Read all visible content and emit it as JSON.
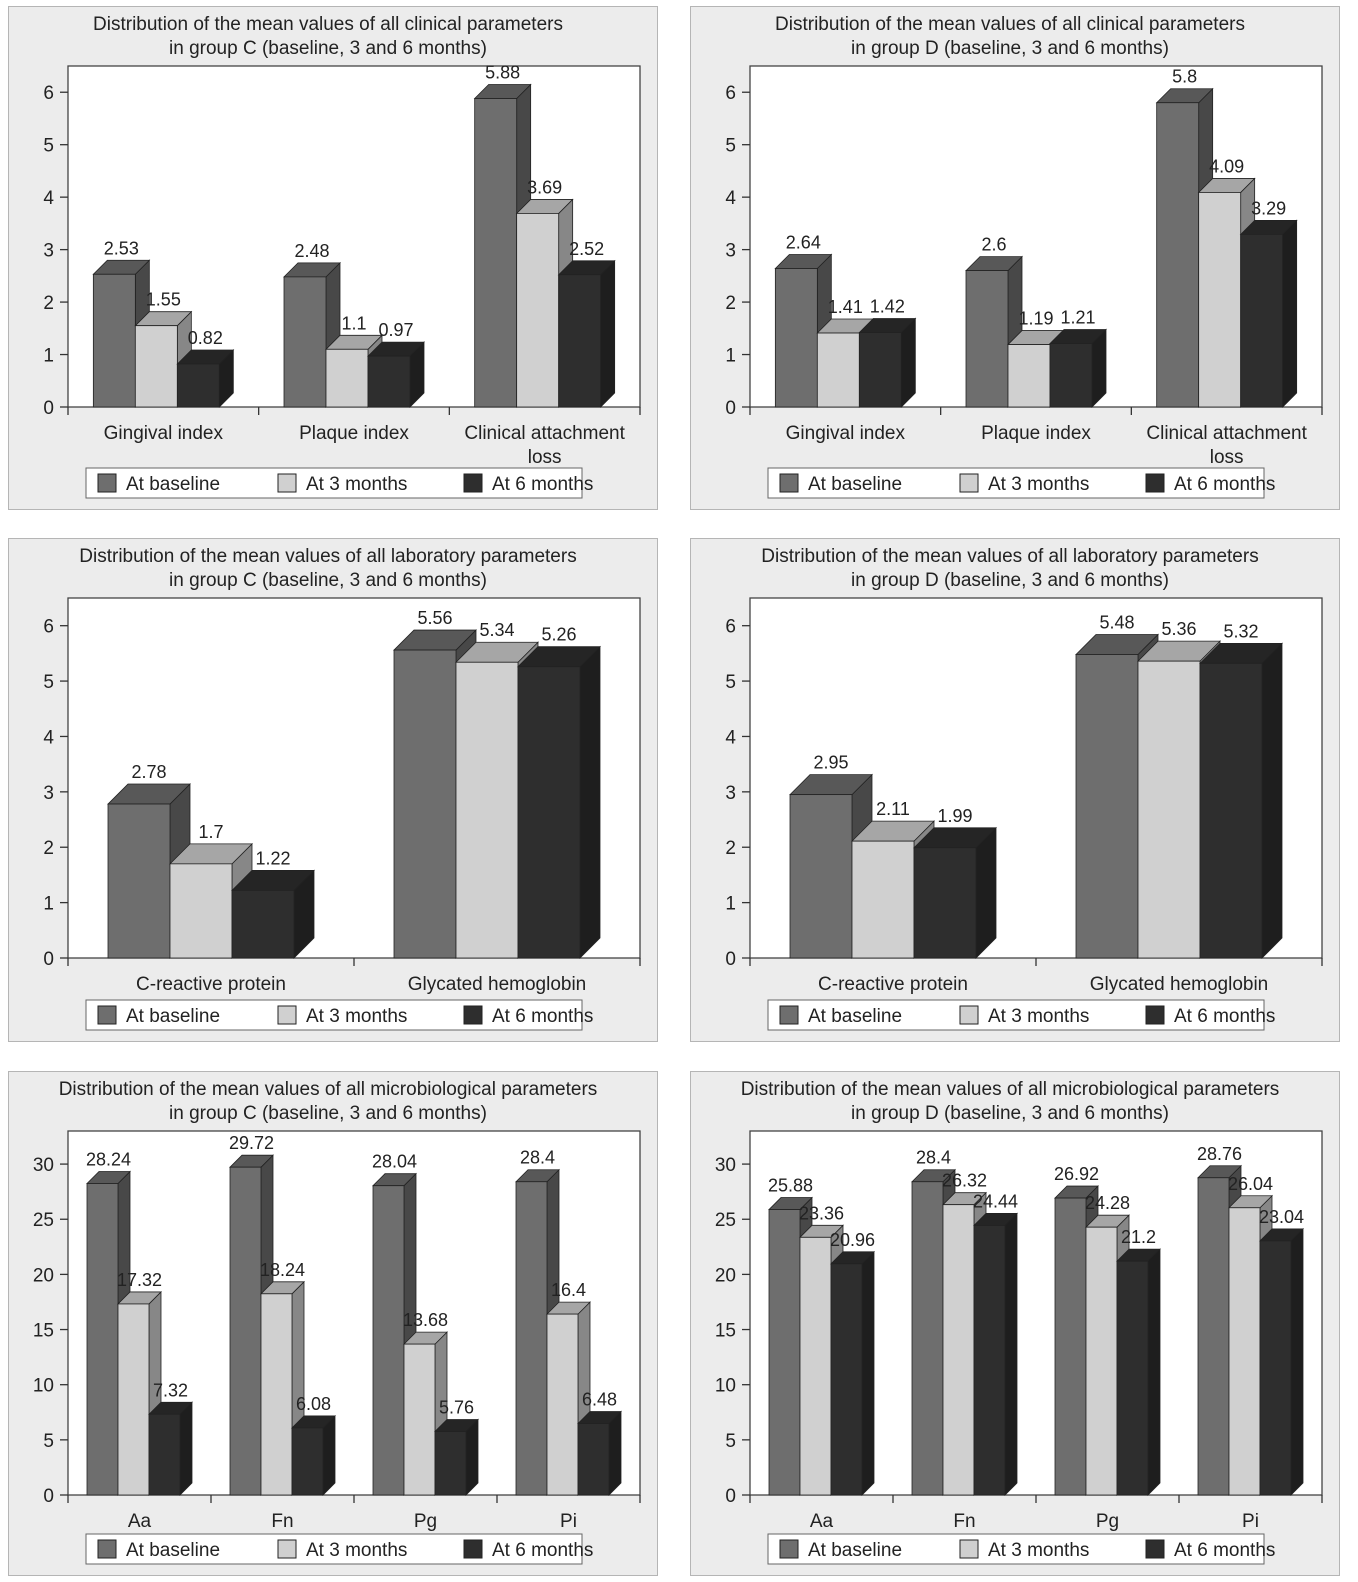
{
  "legend_labels": [
    "At baseline",
    "At 3 months",
    "At 6 months"
  ],
  "colors": {
    "baseline": "#6e6e6e",
    "month3": "#d0d0d0",
    "month6": "#2e2e2e",
    "panel_bg": "#ececec",
    "plot_bg": "#ffffff"
  },
  "chart_data": [
    {
      "id": "clinical-c",
      "type": "bar",
      "title_lines": [
        "Distribution of the mean values of all clinical parameters",
        "in group C (baseline, 3 and 6 months)"
      ],
      "categories": [
        [
          "Gingival index"
        ],
        [
          "Plaque index"
        ],
        [
          "Clinical attachment",
          "loss"
        ]
      ],
      "ylim": [
        0,
        6.5
      ],
      "yticks": [
        0,
        1,
        2,
        3,
        4,
        5,
        6
      ],
      "series": [
        {
          "name": "At baseline",
          "values": [
            2.53,
            2.48,
            5.88
          ]
        },
        {
          "name": "At 3 months",
          "values": [
            1.55,
            1.1,
            3.69
          ]
        },
        {
          "name": "At 6 months",
          "values": [
            0.82,
            0.97,
            2.52
          ]
        }
      ],
      "grid": false,
      "legend": "bottom"
    },
    {
      "id": "clinical-d",
      "type": "bar",
      "title_lines": [
        "Distribution of the mean values of all clinical parameters",
        "in group D (baseline, 3 and 6 months)"
      ],
      "categories": [
        [
          "Gingival index"
        ],
        [
          "Plaque index"
        ],
        [
          "Clinical attachment",
          "loss"
        ]
      ],
      "ylim": [
        0,
        6.5
      ],
      "yticks": [
        0,
        1,
        2,
        3,
        4,
        5,
        6
      ],
      "series": [
        {
          "name": "At baseline",
          "values": [
            2.64,
            2.6,
            5.8
          ]
        },
        {
          "name": "At 3 months",
          "values": [
            1.41,
            1.19,
            4.09
          ]
        },
        {
          "name": "At 6 months",
          "values": [
            1.42,
            1.21,
            3.29
          ]
        }
      ],
      "grid": false,
      "legend": "bottom"
    },
    {
      "id": "laboratory-c",
      "type": "bar",
      "title_lines": [
        "Distribution of the mean values of all laboratory parameters",
        "in group C (baseline, 3 and 6 months)"
      ],
      "categories": [
        [
          "C-reactive protein"
        ],
        [
          "Glycated hemoglobin"
        ]
      ],
      "ylim": [
        0,
        6.5
      ],
      "yticks": [
        0,
        1,
        2,
        3,
        4,
        5,
        6
      ],
      "series": [
        {
          "name": "At baseline",
          "values": [
            2.78,
            5.56
          ]
        },
        {
          "name": "At 3 months",
          "values": [
            1.7,
            5.34
          ]
        },
        {
          "name": "At 6 months",
          "values": [
            1.22,
            5.26
          ]
        }
      ],
      "grid": false,
      "legend": "bottom"
    },
    {
      "id": "laboratory-d",
      "type": "bar",
      "title_lines": [
        "Distribution of the mean values of all laboratory parameters",
        "in group D (baseline, 3 and 6 months)"
      ],
      "categories": [
        [
          "C-reactive protein"
        ],
        [
          "Glycated hemoglobin"
        ]
      ],
      "ylim": [
        0,
        6.5
      ],
      "yticks": [
        0,
        1,
        2,
        3,
        4,
        5,
        6
      ],
      "series": [
        {
          "name": "At baseline",
          "values": [
            2.95,
            5.48
          ]
        },
        {
          "name": "At 3 months",
          "values": [
            2.11,
            5.36
          ]
        },
        {
          "name": "At 6 months",
          "values": [
            1.99,
            5.32
          ]
        }
      ],
      "grid": false,
      "legend": "bottom"
    },
    {
      "id": "microbiological-c",
      "type": "bar",
      "title_lines": [
        "Distribution of the mean values of all microbiological parameters",
        "in group C (baseline, 3 and 6 months)"
      ],
      "categories": [
        [
          "Aa"
        ],
        [
          "Fn"
        ],
        [
          "Pg"
        ],
        [
          "Pi"
        ]
      ],
      "ylim": [
        0,
        33
      ],
      "yticks": [
        0,
        5,
        10,
        15,
        20,
        25,
        30
      ],
      "series": [
        {
          "name": "At baseline",
          "values": [
            28.24,
            29.72,
            28.04,
            28.4
          ]
        },
        {
          "name": "At 3 months",
          "values": [
            17.32,
            18.24,
            13.68,
            16.4
          ]
        },
        {
          "name": "At 6 months",
          "values": [
            7.32,
            6.08,
            5.76,
            6.48
          ]
        }
      ],
      "grid": false,
      "legend": "bottom"
    },
    {
      "id": "microbiological-d",
      "type": "bar",
      "title_lines": [
        "Distribution of the mean values of all microbiological parameters",
        "in group D (baseline, 3 and 6 months)"
      ],
      "categories": [
        [
          "Aa"
        ],
        [
          "Fn"
        ],
        [
          "Pg"
        ],
        [
          "Pi"
        ]
      ],
      "ylim": [
        0,
        33
      ],
      "yticks": [
        0,
        5,
        10,
        15,
        20,
        25,
        30
      ],
      "series": [
        {
          "name": "At baseline",
          "values": [
            25.88,
            28.4,
            26.92,
            28.76
          ]
        },
        {
          "name": "At 3 months",
          "values": [
            23.36,
            26.32,
            24.28,
            26.04
          ]
        },
        {
          "name": "At 6 months",
          "values": [
            20.96,
            24.44,
            21.2,
            23.04
          ]
        }
      ],
      "grid": false,
      "legend": "bottom"
    }
  ]
}
